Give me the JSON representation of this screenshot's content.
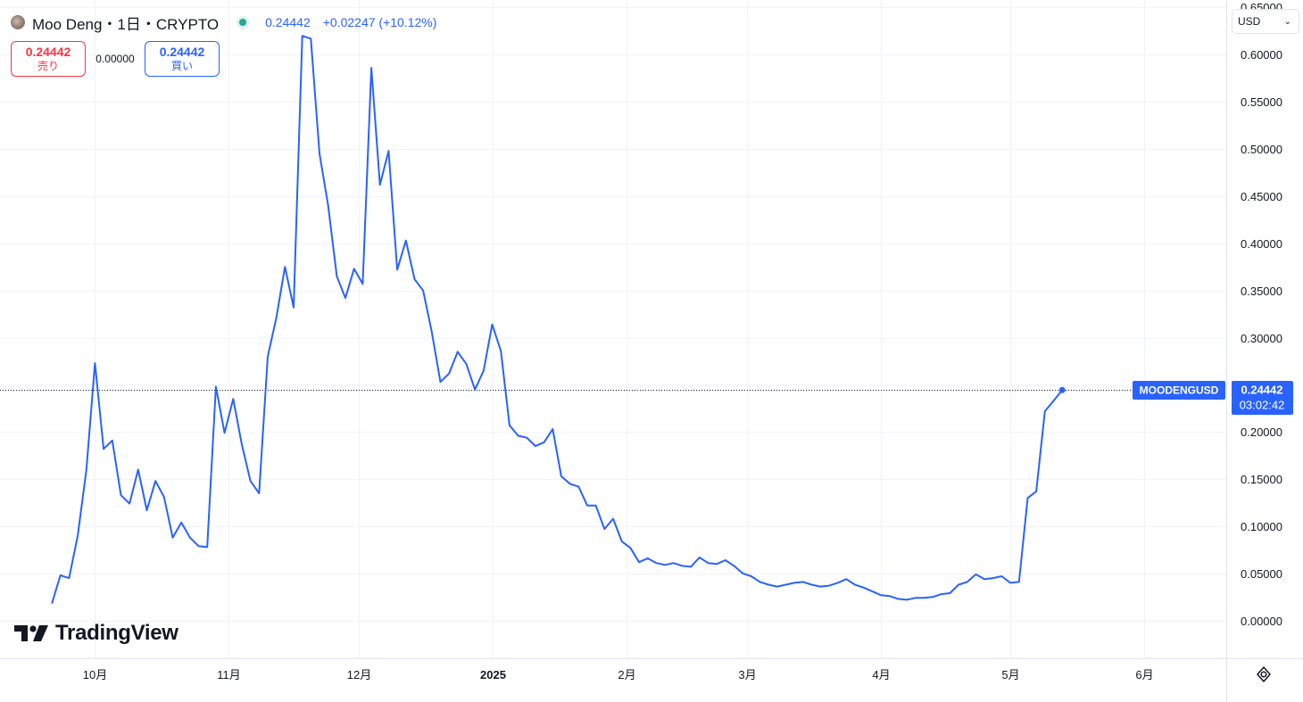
{
  "header": {
    "symbol": "Moo Deng・1日・CRYPTO",
    "last_price": "0.24442",
    "change": "+0.02247 (+10.12%)",
    "status_icon": "market-open-dot",
    "symbol_icon": "coin-logo-icon"
  },
  "trade": {
    "sell_price": "0.24442",
    "sell_label": "売り",
    "spread": "0.00000",
    "buy_price": "0.24442",
    "buy_label": "買い"
  },
  "currency": {
    "value": "USD"
  },
  "branding": {
    "logo_text": "TradingView"
  },
  "price_label": {
    "symbol": "MOODENGUSD",
    "price": "0.24442",
    "countdown": "03:02:42"
  },
  "colors": {
    "line": "#2962ff",
    "grid": "#f0f3fa",
    "axis_text": "#131722",
    "label_bg": "#2962ff",
    "sell": "#f23645",
    "buy": "#2962ff"
  },
  "chart_data": {
    "type": "line",
    "series": [
      {
        "x": [
          "2024-09-21",
          "2024-09-23",
          "2024-09-25",
          "2024-09-27",
          "2024-09-29",
          "2024-10-01",
          "2024-10-03",
          "2024-10-05",
          "2024-10-07",
          "2024-10-09",
          "2024-10-11",
          "2024-10-13",
          "2024-10-15",
          "2024-10-17",
          "2024-10-19",
          "2024-10-21",
          "2024-10-23",
          "2024-10-25",
          "2024-10-27",
          "2024-10-29",
          "2024-10-31",
          "2024-11-02",
          "2024-11-04",
          "2024-11-06",
          "2024-11-08",
          "2024-11-10",
          "2024-11-12",
          "2024-11-14",
          "2024-11-16",
          "2024-11-18",
          "2024-11-20",
          "2024-11-22",
          "2024-11-24",
          "2024-11-26",
          "2024-11-28",
          "2024-11-30",
          "2024-12-02",
          "2024-12-04",
          "2024-12-06",
          "2024-12-08",
          "2024-12-10",
          "2024-12-12",
          "2024-12-14",
          "2024-12-16",
          "2024-12-18",
          "2024-12-20",
          "2024-12-22",
          "2024-12-24",
          "2024-12-26",
          "2024-12-28",
          "2024-12-30",
          "2025-01-01",
          "2025-01-03",
          "2025-01-05",
          "2025-01-07",
          "2025-01-09",
          "2025-01-11",
          "2025-01-13",
          "2025-01-15",
          "2025-01-17",
          "2025-01-19",
          "2025-01-21",
          "2025-01-23",
          "2025-01-25",
          "2025-01-27",
          "2025-01-29",
          "2025-01-31",
          "2025-02-02",
          "2025-02-04",
          "2025-02-06",
          "2025-02-08",
          "2025-02-10",
          "2025-02-12",
          "2025-02-14",
          "2025-02-16",
          "2025-02-18",
          "2025-02-20",
          "2025-02-22",
          "2025-02-24",
          "2025-02-26",
          "2025-02-28",
          "2025-03-02",
          "2025-03-04",
          "2025-03-06",
          "2025-03-08",
          "2025-03-10",
          "2025-03-12",
          "2025-03-14",
          "2025-03-16",
          "2025-03-18",
          "2025-03-20",
          "2025-03-22",
          "2025-03-24",
          "2025-03-26",
          "2025-03-28",
          "2025-03-30",
          "2025-04-01",
          "2025-04-03",
          "2025-04-05",
          "2025-04-07",
          "2025-04-09",
          "2025-04-11",
          "2025-04-13",
          "2025-04-15",
          "2025-04-17",
          "2025-04-19",
          "2025-04-21",
          "2025-04-23",
          "2025-04-25",
          "2025-04-27",
          "2025-04-29",
          "2025-05-01",
          "2025-05-03",
          "2025-05-05",
          "2025-05-07",
          "2025-05-09",
          "2025-05-11",
          "2025-05-13"
        ],
        "y": [
          0.018,
          0.048,
          0.045,
          0.09,
          0.16,
          0.273,
          0.182,
          0.191,
          0.133,
          0.124,
          0.16,
          0.117,
          0.148,
          0.131,
          0.088,
          0.104,
          0.088,
          0.079,
          0.078,
          0.248,
          0.199,
          0.235,
          0.187,
          0.148,
          0.135,
          0.28,
          0.321,
          0.375,
          0.332,
          0.62,
          0.617,
          0.495,
          0.44,
          0.365,
          0.342,
          0.373,
          0.357,
          0.586,
          0.462,
          0.498,
          0.372,
          0.403,
          0.362,
          0.35,
          0.306,
          0.253,
          0.262,
          0.285,
          0.272,
          0.245,
          0.265,
          0.314,
          0.286,
          0.207,
          0.196,
          0.194,
          0.185,
          0.189,
          0.203,
          0.153,
          0.145,
          0.142,
          0.122,
          0.122,
          0.097,
          0.108,
          0.084,
          0.077,
          0.062,
          0.066,
          0.061,
          0.059,
          0.061,
          0.058,
          0.057,
          0.067,
          0.061,
          0.06,
          0.064,
          0.058,
          0.05,
          0.047,
          0.041,
          0.038,
          0.036,
          0.038,
          0.04,
          0.041,
          0.038,
          0.036,
          0.037,
          0.04,
          0.044,
          0.038,
          0.035,
          0.031,
          0.027,
          0.026,
          0.023,
          0.022,
          0.024,
          0.024,
          0.025,
          0.028,
          0.029,
          0.038,
          0.041,
          0.049,
          0.044,
          0.045,
          0.047,
          0.04,
          0.041,
          0.13,
          0.137,
          0.222,
          0.233,
          0.24442
        ]
      }
    ],
    "x_ticks": [
      "10月",
      "11月",
      "12月",
      "2025",
      "2月",
      "3月",
      "4月",
      "5月",
      "6月"
    ],
    "y_ticks": [
      "0.00000",
      "0.05000",
      "0.10000",
      "0.15000",
      "0.20000",
      "0.25000",
      "0.30000",
      "0.35000",
      "0.40000",
      "0.45000",
      "0.50000",
      "0.55000",
      "0.60000",
      "0.65000"
    ],
    "xlim": [
      "2024-09-09",
      "2025-06-20"
    ],
    "ylim": [
      -0.04,
      0.658
    ],
    "last_value": 0.24442,
    "grid": true,
    "legend": "none"
  }
}
